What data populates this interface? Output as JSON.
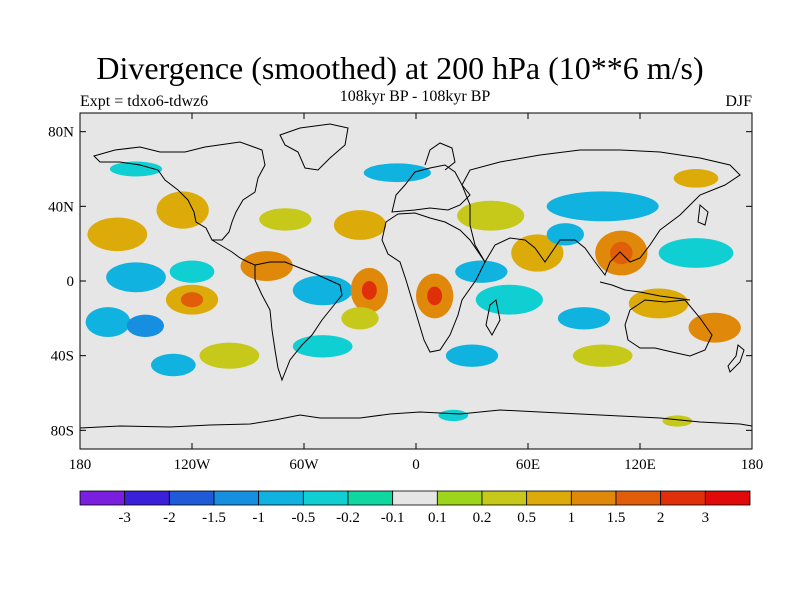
{
  "header": {
    "title": "Divergence (smoothed) at 200 hPa (10**6 m/s)",
    "subtitle": "108kyr BP - 108kyr BP",
    "experiment": "Expt = tdxo6-tdwz6",
    "season": "DJF"
  },
  "map": {
    "lon_range": [
      -180,
      180
    ],
    "lat_range": [
      -90,
      90
    ],
    "lat_ticks": [
      {
        "value": 80,
        "label": "80N"
      },
      {
        "value": 40,
        "label": "40N"
      },
      {
        "value": 0,
        "label": "0"
      },
      {
        "value": -40,
        "label": "40S"
      },
      {
        "value": -80,
        "label": "80S"
      }
    ],
    "lon_ticks": [
      {
        "value": -180,
        "label": "180"
      },
      {
        "value": -120,
        "label": "120W"
      },
      {
        "value": -60,
        "label": "60W"
      },
      {
        "value": 0,
        "label": "0"
      },
      {
        "value": 60,
        "label": "60E"
      },
      {
        "value": 120,
        "label": "120E"
      },
      {
        "value": 180,
        "label": "180"
      }
    ],
    "background_color": "#e6e6e6",
    "fields": [
      {
        "lon": -160,
        "lat": 25,
        "rx": 16,
        "ry": 9,
        "bin": 10
      },
      {
        "lon": -125,
        "lat": 38,
        "rx": 14,
        "ry": 10,
        "bin": 10
      },
      {
        "lon": -150,
        "lat": 2,
        "rx": 16,
        "ry": 8,
        "bin": 4
      },
      {
        "lon": -120,
        "lat": 5,
        "rx": 12,
        "ry": 6,
        "bin": 5
      },
      {
        "lon": -165,
        "lat": -22,
        "rx": 12,
        "ry": 8,
        "bin": 4
      },
      {
        "lon": -120,
        "lat": -10,
        "rx": 14,
        "ry": 8,
        "bin": 10
      },
      {
        "lon": -120,
        "lat": -10,
        "rx": 6,
        "ry": 4,
        "bin": 12
      },
      {
        "lon": -145,
        "lat": -24,
        "rx": 10,
        "ry": 6,
        "bin": 3
      },
      {
        "lon": -100,
        "lat": -40,
        "rx": 16,
        "ry": 7,
        "bin": 9
      },
      {
        "lon": -130,
        "lat": -45,
        "rx": 12,
        "ry": 6,
        "bin": 4
      },
      {
        "lon": -70,
        "lat": 33,
        "rx": 14,
        "ry": 6,
        "bin": 9
      },
      {
        "lon": -80,
        "lat": 8,
        "rx": 14,
        "ry": 8,
        "bin": 11
      },
      {
        "lon": -50,
        "lat": -5,
        "rx": 16,
        "ry": 8,
        "bin": 4
      },
      {
        "lon": -25,
        "lat": -5,
        "rx": 10,
        "ry": 12,
        "bin": 11
      },
      {
        "lon": -25,
        "lat": -5,
        "rx": 4,
        "ry": 5,
        "bin": 13
      },
      {
        "lon": -50,
        "lat": -35,
        "rx": 16,
        "ry": 6,
        "bin": 5
      },
      {
        "lon": -30,
        "lat": 30,
        "rx": 14,
        "ry": 8,
        "bin": 10
      },
      {
        "lon": -30,
        "lat": -20,
        "rx": 10,
        "ry": 6,
        "bin": 9
      },
      {
        "lon": 10,
        "lat": -8,
        "rx": 10,
        "ry": 12,
        "bin": 11
      },
      {
        "lon": 10,
        "lat": -8,
        "rx": 4,
        "ry": 5,
        "bin": 13
      },
      {
        "lon": 35,
        "lat": 5,
        "rx": 14,
        "ry": 6,
        "bin": 4
      },
      {
        "lon": 50,
        "lat": -10,
        "rx": 18,
        "ry": 8,
        "bin": 5
      },
      {
        "lon": 40,
        "lat": 35,
        "rx": 18,
        "ry": 8,
        "bin": 9
      },
      {
        "lon": 65,
        "lat": 15,
        "rx": 14,
        "ry": 10,
        "bin": 10
      },
      {
        "lon": 80,
        "lat": 25,
        "rx": 10,
        "ry": 6,
        "bin": 4
      },
      {
        "lon": 110,
        "lat": 15,
        "rx": 14,
        "ry": 12,
        "bin": 11
      },
      {
        "lon": 110,
        "lat": 15,
        "rx": 6,
        "ry": 6,
        "bin": 12
      },
      {
        "lon": 100,
        "lat": 40,
        "rx": 30,
        "ry": 8,
        "bin": 4
      },
      {
        "lon": 150,
        "lat": 15,
        "rx": 20,
        "ry": 8,
        "bin": 5
      },
      {
        "lon": 130,
        "lat": -12,
        "rx": 16,
        "ry": 8,
        "bin": 10
      },
      {
        "lon": 160,
        "lat": -25,
        "rx": 14,
        "ry": 8,
        "bin": 11
      },
      {
        "lon": 90,
        "lat": -20,
        "rx": 14,
        "ry": 6,
        "bin": 4
      },
      {
        "lon": 100,
        "lat": -40,
        "rx": 16,
        "ry": 6,
        "bin": 9
      },
      {
        "lon": 30,
        "lat": -40,
        "rx": 14,
        "ry": 6,
        "bin": 4
      },
      {
        "lon": -150,
        "lat": 60,
        "rx": 14,
        "ry": 4,
        "bin": 5
      },
      {
        "lon": -10,
        "lat": 58,
        "rx": 18,
        "ry": 5,
        "bin": 4
      },
      {
        "lon": 150,
        "lat": 55,
        "rx": 12,
        "ry": 5,
        "bin": 10
      },
      {
        "lon": 140,
        "lat": -75,
        "rx": 8,
        "ry": 3,
        "bin": 9
      },
      {
        "lon": 20,
        "lat": -72,
        "rx": 8,
        "ry": 3,
        "bin": 5
      }
    ]
  },
  "colorbar": {
    "colors": [
      "#7a1ee0",
      "#3a20d8",
      "#1f5ad8",
      "#168fe0",
      "#10b2df",
      "#10cfd2",
      "#10d6a0",
      "#e6e6e6",
      "#9cd51a",
      "#c6c91a",
      "#dcab0a",
      "#e0880a",
      "#e05d0a",
      "#e0300a",
      "#e00a0a"
    ],
    "labels": [
      "-3",
      "-2",
      "-1.5",
      "-1",
      "-0.5",
      "-0.2",
      "-0.1",
      "0.1",
      "0.2",
      "0.5",
      "1",
      "1.5",
      "2",
      "3"
    ]
  }
}
